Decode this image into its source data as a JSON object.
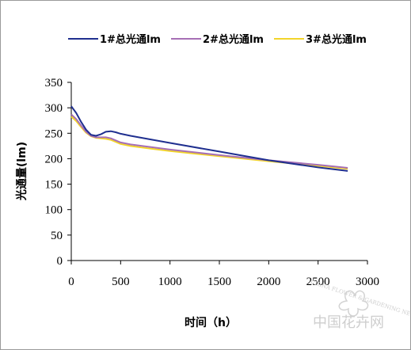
{
  "chart_data": {
    "type": "line",
    "title": "",
    "xlabel": "时间（h）",
    "ylabel": "光通量(lm)",
    "xlim": [
      0,
      3000
    ],
    "ylim": [
      0,
      350
    ],
    "x_ticks": [
      "0",
      "500",
      "1000",
      "1500",
      "2000",
      "2500",
      "3000"
    ],
    "y_ticks": [
      "0",
      "50",
      "100",
      "150",
      "200",
      "250",
      "300",
      "350"
    ],
    "grid": false,
    "legend_position": "top",
    "series": [
      {
        "name": "1#总光通lm",
        "color": "#1f2f8f",
        "x": [
          0,
          50,
          100,
          150,
          200,
          250,
          300,
          350,
          400,
          450,
          500,
          600,
          800,
          1000,
          1500,
          2000,
          2500,
          2800
        ],
        "y": [
          303,
          290,
          272,
          257,
          247,
          245,
          248,
          253,
          254,
          252,
          249,
          245,
          238,
          231,
          214,
          197,
          183,
          176
        ]
      },
      {
        "name": "2#总光通lm",
        "color": "#a66fb5",
        "x": [
          0,
          50,
          100,
          150,
          200,
          250,
          300,
          350,
          400,
          450,
          500,
          600,
          800,
          1000,
          1500,
          2000,
          2500,
          2800
        ],
        "y": [
          287,
          278,
          265,
          253,
          245,
          242,
          242,
          242,
          240,
          236,
          232,
          228,
          223,
          218,
          207,
          197,
          188,
          182
        ]
      },
      {
        "name": "3#总光通lm",
        "color": "#f2d52a",
        "x": [
          0,
          50,
          100,
          150,
          200,
          250,
          300,
          350,
          400,
          450,
          500,
          600,
          800,
          1000,
          1500,
          2000,
          2500,
          2800
        ],
        "y": [
          283,
          274,
          262,
          251,
          244,
          241,
          240,
          239,
          237,
          233,
          229,
          225,
          220,
          215,
          205,
          195,
          186,
          180
        ]
      }
    ]
  },
  "watermark": {
    "site_name": "中国花卉网",
    "site_tagline": "CHINA FLOWER & GARDENING NEWS"
  }
}
